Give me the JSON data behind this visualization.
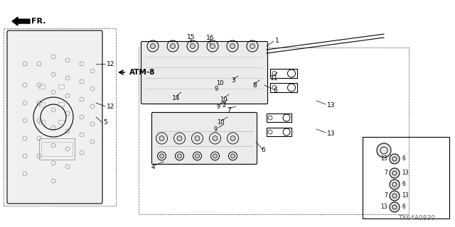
{
  "bg_color": "#ffffff",
  "line_color": "#000000",
  "title_code": "TX64A0830",
  "figsize": [
    6.4,
    3.2
  ],
  "dpi": 100
}
